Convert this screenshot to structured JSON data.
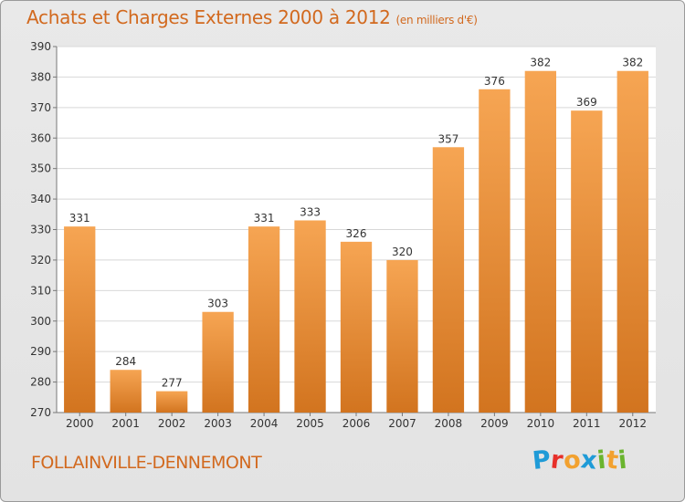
{
  "chart_data": {
    "type": "bar",
    "title": "Achats et Charges Externes 2000 à 2012",
    "subtitle": "(en milliers d'€)",
    "categories": [
      "2000",
      "2001",
      "2002",
      "2003",
      "2004",
      "2005",
      "2006",
      "2007",
      "2008",
      "2009",
      "2010",
      "2011",
      "2012"
    ],
    "values": [
      331,
      284,
      277,
      303,
      331,
      333,
      326,
      320,
      357,
      376,
      382,
      369,
      382
    ],
    "ylim": [
      270,
      390
    ],
    "yticks": [
      270,
      280,
      290,
      300,
      310,
      320,
      330,
      340,
      350,
      360,
      370,
      380,
      390
    ],
    "grid": true,
    "bar_color_top": "#f6a553",
    "bar_color_bottom": "#d2741f"
  },
  "footer": {
    "location": "FOLLAINVILLE-DENNEMONT",
    "logo_text": "Proxiti",
    "logo_letters": [
      {
        "char": "P",
        "color": "#1f9bd7"
      },
      {
        "char": "r",
        "color": "#e7302a"
      },
      {
        "char": "o",
        "color": "#f2a12f"
      },
      {
        "char": "x",
        "color": "#1f9bd7"
      },
      {
        "char": "i",
        "color": "#6ab42e"
      },
      {
        "char": "t",
        "color": "#f2a12f"
      },
      {
        "char": "i",
        "color": "#6ab42e"
      }
    ]
  }
}
